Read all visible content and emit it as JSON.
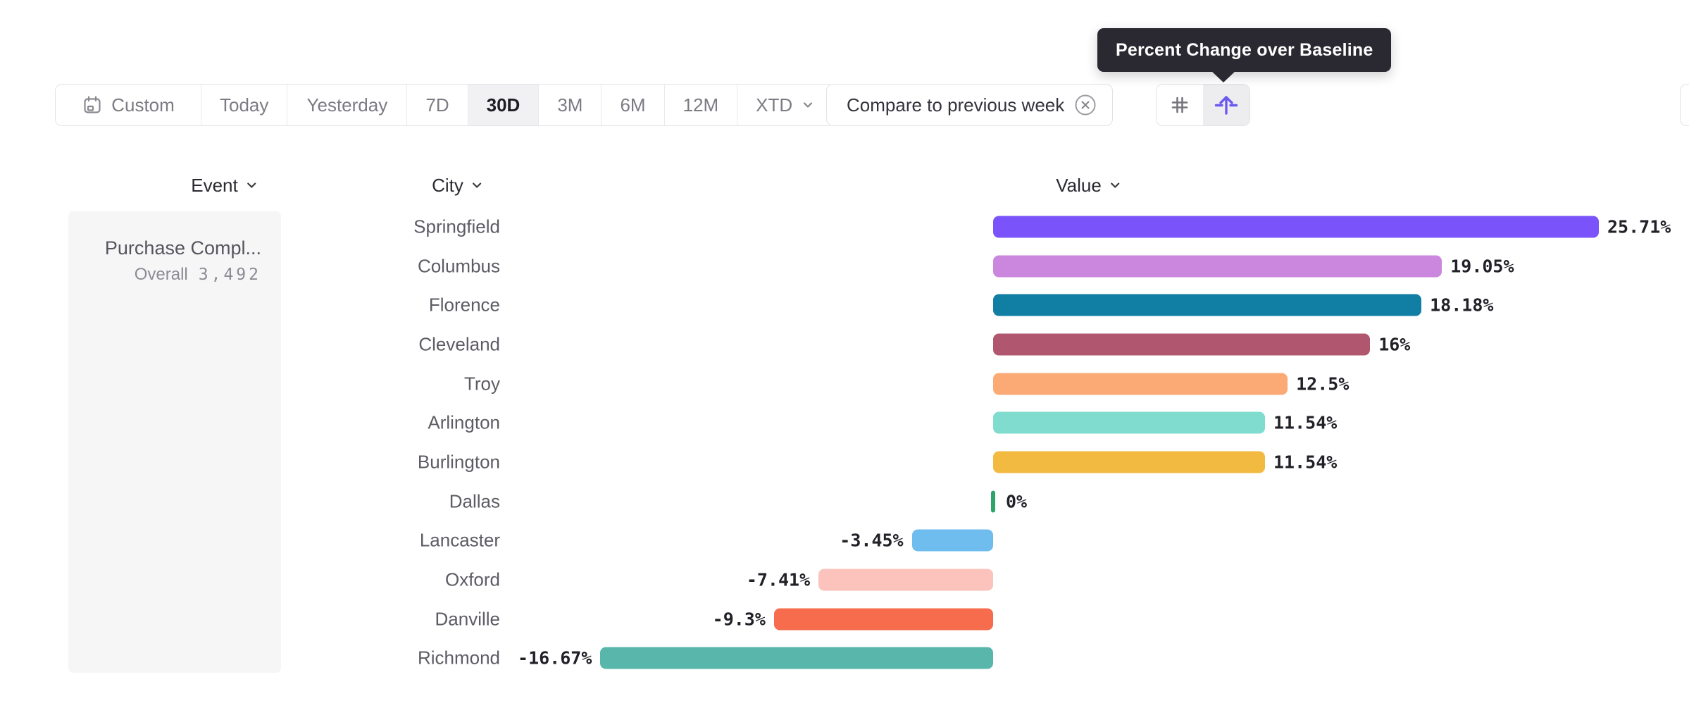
{
  "tooltip": {
    "text": "Percent Change over Baseline"
  },
  "toolbar": {
    "date_ranges": [
      {
        "label": "Custom",
        "icon": "calendar",
        "selected": false
      },
      {
        "label": "Today",
        "selected": false
      },
      {
        "label": "Yesterday",
        "selected": false
      },
      {
        "label": "7D",
        "selected": false
      },
      {
        "label": "30D",
        "selected": true
      },
      {
        "label": "3M",
        "selected": false
      },
      {
        "label": "6M",
        "selected": false
      },
      {
        "label": "12M",
        "selected": false
      },
      {
        "label": "XTD",
        "chevron": true,
        "selected": false
      }
    ],
    "compare_chip": {
      "label": "Compare to previous week",
      "icon": "close-circle"
    },
    "view_toggle": [
      {
        "icon": "hash",
        "selected": false
      },
      {
        "icon": "percent-change",
        "selected": true
      }
    ]
  },
  "columns": {
    "event": "Event",
    "city": "City",
    "value": "Value"
  },
  "event_card": {
    "name": "Purchase Compl...",
    "breakdown_label": "Overall",
    "breakdown_value": "3,492"
  },
  "chart_data": {
    "type": "bar",
    "orientation": "horizontal",
    "title": "Percent Change over Baseline",
    "comparison": "Compare to previous week",
    "unit": "%",
    "baseline": 0,
    "categories": [
      "Springfield",
      "Columbus",
      "Florence",
      "Cleveland",
      "Troy",
      "Arlington",
      "Burlington",
      "Dallas",
      "Lancaster",
      "Oxford",
      "Danville",
      "Richmond"
    ],
    "values": [
      25.71,
      19.05,
      18.18,
      16,
      12.5,
      11.54,
      11.54,
      0,
      -3.45,
      -7.41,
      -9.3,
      -16.67
    ],
    "labels": [
      "25.71%",
      "19.05%",
      "18.18%",
      "16%",
      "12.5%",
      "11.54%",
      "11.54%",
      "0%",
      "-3.45%",
      "-7.41%",
      "-9.3%",
      "-16.67%"
    ],
    "colors": [
      "#7a54fa",
      "#cb86dd",
      "#117ea3",
      "#b0566f",
      "#fbaa75",
      "#7fdcce",
      "#f3ba41",
      "#2ea36c",
      "#6fbcef",
      "#fbc3bb",
      "#f66c4d",
      "#58b7aa"
    ]
  },
  "theme": {
    "accent_purple": "#6c5af0",
    "tooltip_bg": "#2a2932",
    "border": "#e2e2e6",
    "selected_bg": "#f1f1f3",
    "muted_text": "#7c7b83",
    "dark_text": "#1f1e24"
  }
}
